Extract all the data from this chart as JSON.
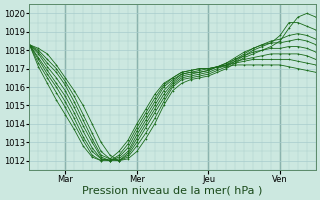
{
  "background_color": "#cce8e0",
  "plot_bg_color": "#cce8e0",
  "grid_color": "#a8cccc",
  "line_color": "#1a6b1a",
  "ylim": [
    1011.5,
    1020.5
  ],
  "yticks": [
    1012,
    1013,
    1014,
    1015,
    1016,
    1017,
    1018,
    1019,
    1020
  ],
  "xlabel": "Pression niveau de la mer( hPa )",
  "day_labels": [
    "Mar",
    "Mer",
    "Jeu",
    "Ven"
  ],
  "day_positions": [
    24,
    72,
    120,
    168
  ],
  "xlim": [
    0,
    192
  ],
  "tick_fontsize": 6,
  "label_fontsize": 8,
  "series": [
    {
      "x": [
        0,
        6,
        12,
        18,
        24,
        30,
        36,
        42,
        48,
        54,
        60,
        66,
        72,
        78,
        84,
        90,
        96,
        102,
        108,
        114,
        120,
        126,
        132,
        138,
        144,
        150,
        156,
        162,
        168,
        174,
        180,
        186,
        192
      ],
      "y": [
        1018.3,
        1018.1,
        1017.8,
        1017.2,
        1016.5,
        1015.8,
        1015.0,
        1014.0,
        1013.0,
        1012.3,
        1012.0,
        1012.1,
        1012.5,
        1013.2,
        1014.0,
        1015.0,
        1015.8,
        1016.2,
        1016.4,
        1016.5,
        1016.6,
        1016.8,
        1017.0,
        1017.3,
        1017.6,
        1017.8,
        1018.0,
        1018.2,
        1018.5,
        1019.2,
        1019.8,
        1020.0,
        1019.8
      ]
    },
    {
      "x": [
        0,
        6,
        12,
        18,
        24,
        30,
        36,
        42,
        48,
        54,
        60,
        66,
        72,
        78,
        84,
        90,
        96,
        102,
        108,
        114,
        120,
        126,
        132,
        138,
        144,
        150,
        156,
        162,
        168,
        174,
        180,
        186,
        192
      ],
      "y": [
        1018.3,
        1018.0,
        1017.5,
        1017.0,
        1016.3,
        1015.5,
        1014.5,
        1013.5,
        1012.5,
        1012.1,
        1012.0,
        1012.2,
        1012.8,
        1013.5,
        1014.3,
        1015.2,
        1016.0,
        1016.4,
        1016.5,
        1016.6,
        1016.7,
        1016.9,
        1017.1,
        1017.4,
        1017.7,
        1018.0,
        1018.2,
        1018.4,
        1018.8,
        1019.5,
        1019.5,
        1019.3,
        1019.1
      ]
    },
    {
      "x": [
        0,
        6,
        12,
        18,
        24,
        30,
        36,
        42,
        48,
        54,
        60,
        66,
        72,
        78,
        84,
        90,
        96,
        102,
        108,
        114,
        120,
        126,
        132,
        138,
        144,
        150,
        156,
        162,
        168,
        174,
        180,
        186,
        192
      ],
      "y": [
        1018.3,
        1017.9,
        1017.3,
        1016.8,
        1016.1,
        1015.2,
        1014.2,
        1013.2,
        1012.3,
        1012.1,
        1012.0,
        1012.3,
        1013.0,
        1013.8,
        1014.6,
        1015.4,
        1016.1,
        1016.5,
        1016.6,
        1016.7,
        1016.8,
        1017.0,
        1017.2,
        1017.5,
        1017.8,
        1018.1,
        1018.3,
        1018.5,
        1018.6,
        1018.8,
        1018.9,
        1018.8,
        1018.6
      ]
    },
    {
      "x": [
        0,
        6,
        12,
        18,
        24,
        30,
        36,
        42,
        48,
        54,
        60,
        66,
        72,
        78,
        84,
        90,
        96,
        102,
        108,
        114,
        120,
        126,
        132,
        138,
        144,
        150,
        156,
        162,
        168,
        174,
        180,
        186,
        192
      ],
      "y": [
        1018.3,
        1017.8,
        1017.1,
        1016.5,
        1015.8,
        1014.9,
        1013.9,
        1013.0,
        1012.2,
        1012.0,
        1012.0,
        1012.4,
        1013.2,
        1014.0,
        1014.8,
        1015.6,
        1016.2,
        1016.6,
        1016.7,
        1016.8,
        1016.9,
        1017.1,
        1017.3,
        1017.6,
        1017.9,
        1018.1,
        1018.3,
        1018.4,
        1018.4,
        1018.5,
        1018.6,
        1018.5,
        1018.3
      ]
    },
    {
      "x": [
        0,
        6,
        12,
        18,
        24,
        30,
        36,
        42,
        48,
        54,
        60,
        66,
        72,
        78,
        84,
        90,
        96,
        102,
        108,
        114,
        120,
        126,
        132,
        138,
        144,
        150,
        156,
        162,
        168,
        174,
        180,
        186,
        192
      ],
      "y": [
        1018.3,
        1017.6,
        1016.9,
        1016.2,
        1015.5,
        1014.6,
        1013.6,
        1012.7,
        1012.1,
        1012.0,
        1012.1,
        1012.5,
        1013.4,
        1014.2,
        1015.0,
        1015.8,
        1016.3,
        1016.7,
        1016.8,
        1016.8,
        1016.9,
        1017.1,
        1017.3,
        1017.5,
        1017.7,
        1017.9,
        1018.0,
        1018.1,
        1018.1,
        1018.2,
        1018.2,
        1018.1,
        1017.9
      ]
    },
    {
      "x": [
        0,
        6,
        12,
        18,
        24,
        30,
        36,
        42,
        48,
        54,
        60,
        66,
        72,
        78,
        84,
        90,
        96,
        102,
        108,
        114,
        120,
        126,
        132,
        138,
        144,
        150,
        156,
        162,
        168,
        174,
        180,
        186,
        192
      ],
      "y": [
        1018.3,
        1017.5,
        1016.7,
        1016.0,
        1015.2,
        1014.3,
        1013.3,
        1012.5,
        1012.1,
        1012.0,
        1012.2,
        1012.7,
        1013.6,
        1014.4,
        1015.2,
        1016.0,
        1016.4,
        1016.7,
        1016.8,
        1016.9,
        1017.0,
        1017.1,
        1017.2,
        1017.4,
        1017.5,
        1017.6,
        1017.7,
        1017.8,
        1017.8,
        1017.8,
        1017.8,
        1017.7,
        1017.5
      ]
    },
    {
      "x": [
        0,
        6,
        12,
        18,
        24,
        30,
        36,
        42,
        48,
        54,
        60,
        66,
        72,
        78,
        84,
        90,
        96,
        102,
        108,
        114,
        120,
        126,
        132,
        138,
        144,
        150,
        156,
        162,
        168,
        174,
        180,
        186,
        192
      ],
      "y": [
        1018.3,
        1017.3,
        1016.5,
        1015.7,
        1014.9,
        1014.0,
        1013.1,
        1012.3,
        1012.0,
        1012.0,
        1012.3,
        1012.9,
        1013.8,
        1014.6,
        1015.4,
        1016.1,
        1016.5,
        1016.8,
        1016.9,
        1017.0,
        1017.0,
        1017.1,
        1017.2,
        1017.3,
        1017.4,
        1017.5,
        1017.5,
        1017.5,
        1017.5,
        1017.5,
        1017.4,
        1017.3,
        1017.2
      ]
    },
    {
      "x": [
        0,
        6,
        12,
        18,
        24,
        30,
        36,
        42,
        48,
        54,
        60,
        66,
        72,
        78,
        84,
        90,
        96,
        102,
        108,
        114,
        120,
        126,
        132,
        138,
        144,
        150,
        156,
        162,
        168,
        174,
        180,
        186,
        192
      ],
      "y": [
        1018.3,
        1017.1,
        1016.2,
        1015.3,
        1014.5,
        1013.7,
        1012.8,
        1012.2,
        1012.0,
        1012.1,
        1012.5,
        1013.1,
        1014.0,
        1014.8,
        1015.6,
        1016.2,
        1016.5,
        1016.8,
        1016.9,
        1017.0,
        1017.0,
        1017.1,
        1017.1,
        1017.2,
        1017.2,
        1017.2,
        1017.2,
        1017.2,
        1017.2,
        1017.1,
        1017.0,
        1016.9,
        1016.8
      ]
    }
  ]
}
